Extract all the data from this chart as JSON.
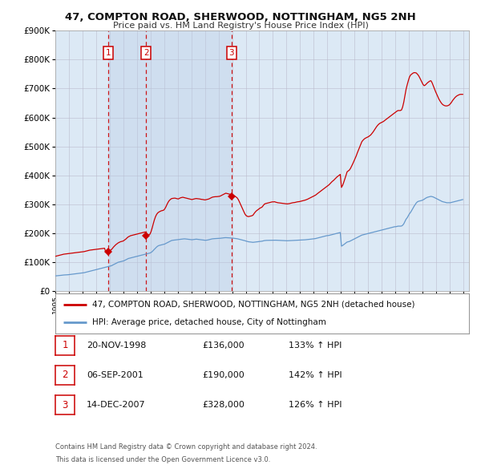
{
  "title": "47, COMPTON ROAD, SHERWOOD, NOTTINGHAM, NG5 2NH",
  "subtitle": "Price paid vs. HM Land Registry's House Price Index (HPI)",
  "legend_line1": "47, COMPTON ROAD, SHERWOOD, NOTTINGHAM, NG5 2NH (detached house)",
  "legend_line2": "HPI: Average price, detached house, City of Nottingham",
  "footnote1": "Contains HM Land Registry data © Crown copyright and database right 2024.",
  "footnote2": "This data is licensed under the Open Government Licence v3.0.",
  "transactions": [
    {
      "num": 1,
      "date": "1998-11-20",
      "price": 136000,
      "label": "20-NOV-1998",
      "pct": "133%",
      "dir": "↑"
    },
    {
      "num": 2,
      "date": "2001-09-06",
      "price": 190000,
      "label": "06-SEP-2001",
      "pct": "142%",
      "dir": "↑"
    },
    {
      "num": 3,
      "date": "2007-12-14",
      "price": 328000,
      "label": "14-DEC-2007",
      "pct": "126%",
      "dir": "↑"
    }
  ],
  "red_line_color": "#cc0000",
  "blue_line_color": "#6699cc",
  "plot_bg_color": "#dce9f5",
  "outer_bg_color": "#ffffff",
  "dashed_color": "#cc0000",
  "marker_color": "#cc0000",
  "ylim": [
    0,
    900000
  ],
  "yticks": [
    0,
    100000,
    200000,
    300000,
    400000,
    500000,
    600000,
    700000,
    800000,
    900000
  ],
  "hpi_values": [
    52000,
    52500,
    53000,
    53200,
    53500,
    54000,
    54500,
    55000,
    55200,
    55500,
    55800,
    56000,
    56500,
    57000,
    57500,
    58000,
    58500,
    59000,
    59500,
    60000,
    60500,
    61000,
    61500,
    62000,
    62500,
    63000,
    64000,
    65000,
    66000,
    67000,
    68000,
    69000,
    70000,
    71000,
    72000,
    73000,
    74000,
    75000,
    76000,
    77000,
    78000,
    79000,
    80000,
    81000,
    82000,
    83000,
    84000,
    85000,
    86000,
    87000,
    89000,
    91000,
    93000,
    95000,
    97000,
    99000,
    100000,
    101000,
    102000,
    103000,
    104000,
    106000,
    108000,
    110000,
    112000,
    113000,
    114000,
    115000,
    116000,
    117000,
    118000,
    119000,
    120000,
    121000,
    122000,
    123000,
    124000,
    125000,
    126000,
    127000,
    128000,
    129000,
    130000,
    131000,
    133000,
    136000,
    140000,
    144000,
    148000,
    152000,
    155000,
    157000,
    158000,
    159000,
    160000,
    161000,
    162000,
    164000,
    166000,
    168000,
    170000,
    172000,
    174000,
    175000,
    175500,
    176000,
    176500,
    177000,
    177500,
    178000,
    178500,
    179000,
    179500,
    180000,
    180000,
    179500,
    179000,
    178500,
    178000,
    177500,
    177000,
    177500,
    178000,
    178500,
    179000,
    178500,
    178000,
    177500,
    177000,
    176500,
    176000,
    175500,
    175000,
    175500,
    176000,
    177000,
    178000,
    179000,
    180000,
    180500,
    180800,
    181000,
    181200,
    181500,
    181800,
    182000,
    182500,
    183000,
    183500,
    184000,
    184200,
    184000,
    183800,
    183500,
    183000,
    182800,
    182500,
    182000,
    181500,
    181000,
    180500,
    179500,
    178500,
    177500,
    176500,
    175500,
    174500,
    173500,
    172000,
    171000,
    170000,
    169500,
    169000,
    168500,
    168000,
    168500,
    169000,
    169500,
    170000,
    170500,
    171000,
    171500,
    172000,
    173000,
    174000,
    174500,
    174800,
    174900,
    175000,
    175200,
    175300,
    175400,
    175500,
    175600,
    175400,
    175200,
    175000,
    174800,
    174600,
    174400,
    174200,
    174000,
    173800,
    173600,
    173500,
    173600,
    173800,
    174000,
    174200,
    174400,
    174500,
    174800,
    175000,
    175200,
    175300,
    175500,
    175800,
    176000,
    176200,
    176500,
    176800,
    177200,
    177500,
    178000,
    178500,
    179000,
    179500,
    180000,
    180500,
    181000,
    182000,
    183000,
    184000,
    185000,
    186000,
    187000,
    188000,
    189000,
    190000,
    191000,
    191500,
    192000,
    193000,
    194000,
    195000,
    196000,
    197000,
    198000,
    199000,
    200000,
    201000,
    202000,
    155000,
    157000,
    160000,
    163000,
    166000,
    169000,
    170000,
    171000,
    173000,
    175000,
    177000,
    179000,
    181000,
    183000,
    185000,
    187000,
    189000,
    191000,
    193000,
    194000,
    195000,
    196000,
    197000,
    198000,
    199000,
    200000,
    201000,
    202000,
    203000,
    204000,
    205000,
    206000,
    207000,
    208000,
    209000,
    210000,
    211000,
    212000,
    213000,
    214000,
    215000,
    216000,
    217000,
    218000,
    219000,
    220000,
    221000,
    222000,
    222000,
    223000,
    224000,
    224000,
    224000,
    224500,
    227000,
    232000,
    240000,
    248000,
    253000,
    260000,
    267000,
    272000,
    278000,
    285000,
    292000,
    298000,
    304000,
    308000,
    310000,
    311000,
    312000,
    313000,
    315000,
    317000,
    320000,
    322000,
    324000,
    325000,
    326000,
    327000,
    326000,
    325000,
    323000,
    321000,
    319000,
    317000,
    315000,
    313000,
    311000,
    309000,
    308000,
    307000,
    306000,
    305000,
    305000,
    305000,
    305000,
    306000,
    307000,
    308000,
    309000,
    310000,
    311000,
    312000,
    313000,
    314000,
    315000,
    316000
  ],
  "red_values": [
    120000,
    121000,
    122000,
    123000,
    124000,
    125000,
    126000,
    127000,
    127500,
    128000,
    128500,
    129000,
    129500,
    130000,
    130500,
    131000,
    131500,
    132000,
    132500,
    133000,
    133500,
    134000,
    134500,
    135000,
    135500,
    136000,
    137000,
    138000,
    139000,
    140000,
    141000,
    141500,
    142000,
    142500,
    143000,
    143500,
    144000,
    144500,
    145000,
    145500,
    146000,
    146500,
    147000,
    147500,
    135000,
    135500,
    136000,
    136500,
    140000,
    143000,
    147000,
    152000,
    156000,
    160000,
    163000,
    166000,
    168000,
    170000,
    171000,
    172000,
    174000,
    177000,
    180000,
    184000,
    187000,
    189000,
    191000,
    192000,
    193000,
    194000,
    195000,
    196000,
    197000,
    198000,
    199000,
    200000,
    201000,
    202000,
    203000,
    204000,
    190000,
    192000,
    194000,
    196000,
    205000,
    218000,
    232000,
    246000,
    257000,
    265000,
    270000,
    273000,
    275000,
    277000,
    278000,
    279000,
    283000,
    290000,
    298000,
    306000,
    312000,
    316000,
    319000,
    320000,
    320500,
    321000,
    320000,
    319000,
    318000,
    320000,
    322000,
    323000,
    324000,
    323000,
    322000,
    321000,
    320000,
    319000,
    318000,
    317000,
    316000,
    317000,
    318000,
    319000,
    319500,
    319000,
    318500,
    318000,
    317000,
    316500,
    316000,
    315000,
    315000,
    316000,
    317000,
    318000,
    320000,
    322000,
    324000,
    325000,
    325500,
    326000,
    326000,
    326500,
    327000,
    328000,
    330000,
    332000,
    334000,
    336000,
    338000,
    337000,
    336000,
    335000,
    334000,
    333000,
    332000,
    330000,
    328000,
    325000,
    322000,
    316000,
    308000,
    299000,
    290000,
    282000,
    273000,
    265000,
    260000,
    258000,
    257000,
    258000,
    259000,
    260000,
    262000,
    268000,
    273000,
    277000,
    280000,
    283000,
    286000,
    288000,
    290000,
    295000,
    300000,
    302000,
    303000,
    304000,
    305000,
    306000,
    307000,
    308000,
    308000,
    308500,
    307000,
    306000,
    305000,
    304500,
    304000,
    303500,
    303000,
    302500,
    302000,
    301500,
    301000,
    301500,
    302000,
    303000,
    304000,
    305000,
    305500,
    306000,
    307000,
    308000,
    308500,
    309000,
    310000,
    311000,
    312000,
    313000,
    314000,
    315500,
    317000,
    319000,
    321000,
    323000,
    325000,
    327000,
    329000,
    331000,
    334000,
    337000,
    340000,
    343000,
    346000,
    349000,
    352000,
    355000,
    358000,
    361000,
    364000,
    367000,
    371000,
    375000,
    379000,
    382000,
    386000,
    390000,
    394000,
    397000,
    400000,
    403000,
    358000,
    365000,
    375000,
    387000,
    399000,
    412000,
    415000,
    418000,
    424000,
    432000,
    440000,
    449000,
    458000,
    467000,
    477000,
    487000,
    497000,
    507000,
    516000,
    521000,
    525000,
    528000,
    530000,
    532000,
    534000,
    537000,
    540000,
    545000,
    550000,
    556000,
    562000,
    568000,
    573000,
    577000,
    580000,
    582000,
    584000,
    586000,
    589000,
    592000,
    595000,
    598000,
    601000,
    604000,
    607000,
    610000,
    613000,
    616000,
    619000,
    622000,
    624000,
    624000,
    624000,
    626000,
    636000,
    653000,
    675000,
    697000,
    713000,
    727000,
    740000,
    747000,
    750000,
    753000,
    755000,
    755000,
    754000,
    750000,
    745000,
    738000,
    730000,
    722000,
    714000,
    710000,
    712000,
    716000,
    720000,
    723000,
    726000,
    727000,
    720000,
    710000,
    700000,
    690000,
    681000,
    672000,
    664000,
    657000,
    651000,
    646000,
    643000,
    641000,
    640000,
    640000,
    641000,
    643000,
    647000,
    652000,
    658000,
    663000,
    668000,
    672000,
    675000,
    677000,
    679000,
    680000,
    680000,
    680000
  ]
}
